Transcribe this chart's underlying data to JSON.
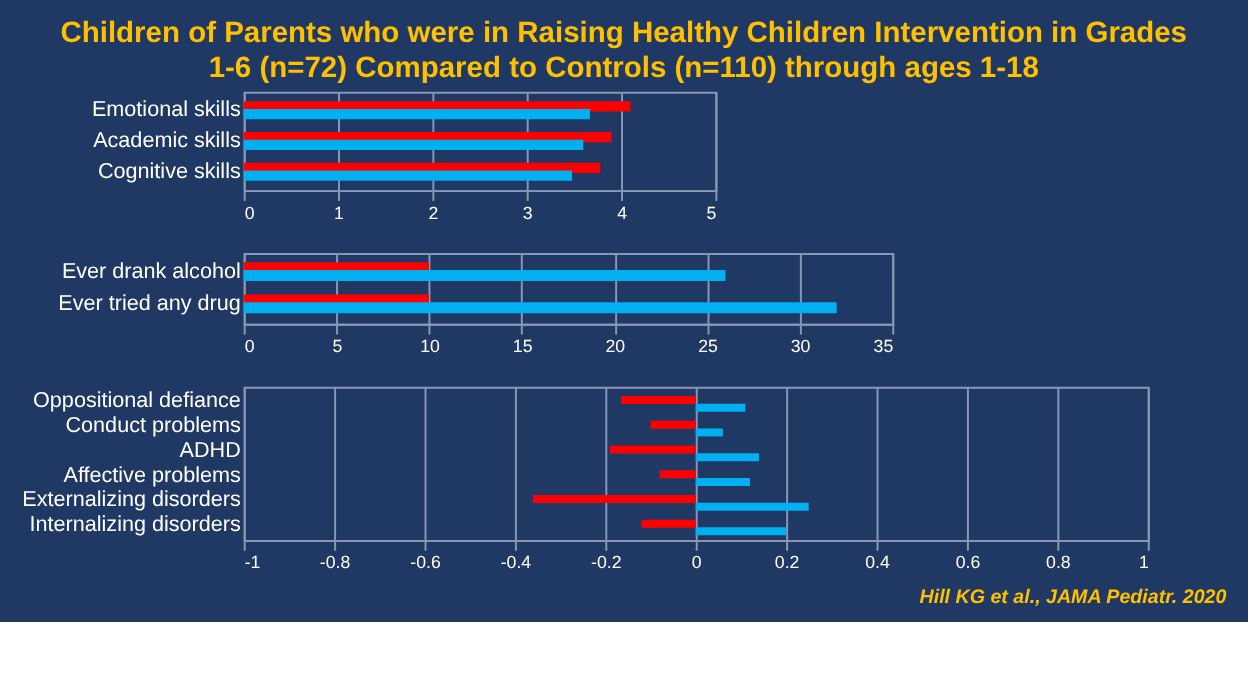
{
  "chart_data": [
    {
      "type": "bar",
      "orientation": "horizontal",
      "title": "Children of Parents who were in Raising Healthy Children Intervention in Grades 1-6 (n=72) Compared to Controls (n=110) through ages 1-18",
      "categories": [
        "Emotional skills",
        "Academic skills",
        "Cognitive skills"
      ],
      "series": [
        {
          "color": "#ff0000",
          "values": [
            4.1,
            3.9,
            3.78
          ]
        },
        {
          "color": "#00b0f0",
          "values": [
            3.67,
            3.6,
            3.48
          ]
        }
      ],
      "xlim": [
        0,
        5
      ],
      "xticks": [
        0,
        1,
        2,
        3,
        4,
        5
      ],
      "grid": "x",
      "legend": false
    },
    {
      "type": "bar",
      "orientation": "horizontal",
      "categories": [
        "Ever drank alcohol",
        "Ever tried any drug"
      ],
      "series": [
        {
          "color": "#ff0000",
          "values": [
            10,
            10
          ]
        },
        {
          "color": "#00b0f0",
          "values": [
            26,
            32
          ]
        }
      ],
      "xlim": [
        0,
        35
      ],
      "xticks": [
        0,
        5,
        10,
        15,
        20,
        25,
        30,
        35
      ],
      "grid": "x",
      "legend": false
    },
    {
      "type": "bar",
      "orientation": "horizontal",
      "categories": [
        "Oppositional defiance",
        "Conduct problems",
        "ADHD",
        "Affective problems",
        "Externalizing disorders",
        "Internalizing disorders"
      ],
      "series": [
        {
          "color": "#ff0000",
          "values": [
            -0.165,
            -0.1,
            -0.19,
            -0.08,
            -0.36,
            -0.12
          ]
        },
        {
          "color": "#00b0f0",
          "values": [
            0.11,
            0.06,
            0.14,
            0.12,
            0.25,
            0.2
          ]
        }
      ],
      "xlim": [
        -1,
        1
      ],
      "xticks": [
        -1,
        -0.8,
        -0.6,
        -0.4,
        -0.2,
        0,
        0.2,
        0.4,
        0.6,
        0.8,
        1
      ],
      "grid": "x",
      "legend": false,
      "annotations": [
        "Hill KG et al., JAMA Pediatr. 2020"
      ]
    }
  ]
}
